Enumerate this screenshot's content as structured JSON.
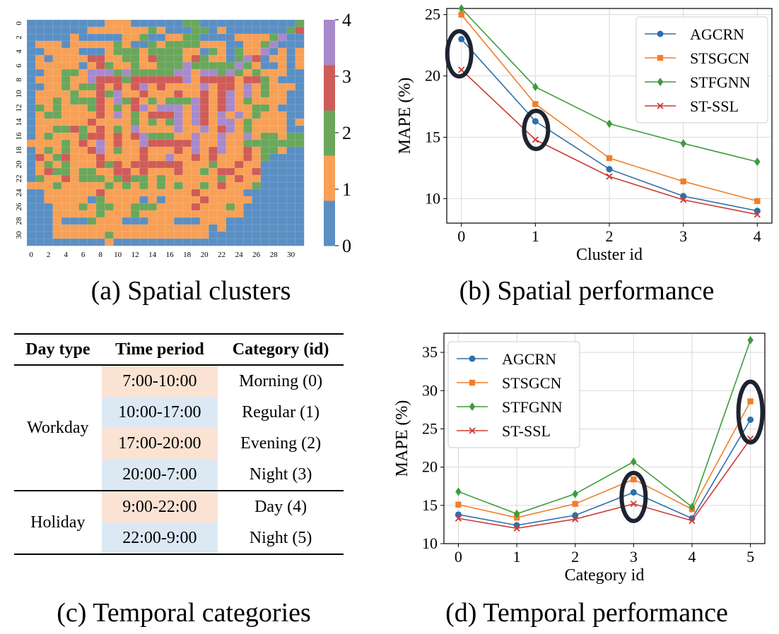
{
  "colors": {
    "cluster": [
      "#5b8fc4",
      "#f7a056",
      "#6aa75c",
      "#cf5c58",
      "#a88acb"
    ],
    "AGCRN": "#2f6fa8",
    "STSGCN": "#f07f2a",
    "STFGNN": "#3d9b3a",
    "ST-SSL": "#cc3b35",
    "highlight": "#1d2330",
    "warm_cell": "#fbe3d4",
    "cool_cell": "#dce9f5"
  },
  "captions": {
    "a": "(a) Spatial clusters",
    "b": "(b) Spatial performance",
    "c": "(c) Temporal categories",
    "d": "(d) Temporal performance"
  },
  "table": {
    "headers": [
      "Day type",
      "Time period",
      "Category (id)"
    ],
    "workday_label": "Workday",
    "holiday_label": "Holiday",
    "rows": [
      {
        "period": "7:00-10:00",
        "category": "Morning (0)"
      },
      {
        "period": "10:00-17:00",
        "category": "Regular (1)"
      },
      {
        "period": "17:00-20:00",
        "category": "Evening (2)"
      },
      {
        "period": "20:00-7:00",
        "category": "Night (3)"
      },
      {
        "period": "9:00-22:00",
        "category": "Day (4)"
      },
      {
        "period": "22:00-9:00",
        "category": "Night (5)"
      }
    ]
  },
  "chart_data": [
    {
      "type": "heatmap",
      "rows": 32,
      "cols": 32,
      "x_ticks": [
        "0",
        "2",
        "4",
        "6",
        "8",
        "10",
        "12",
        "14",
        "16",
        "18",
        "20",
        "22",
        "24",
        "26",
        "28",
        "30"
      ],
      "y_ticks": [
        "0",
        "2",
        "4",
        "6",
        "8",
        "10",
        "12",
        "14",
        "16",
        "18",
        "20",
        "22",
        "24",
        "26",
        "28",
        "30"
      ],
      "colorbar": {
        "min": 0,
        "max": 4,
        "ticks": [
          "0",
          "1",
          "2",
          "3",
          "4"
        ]
      },
      "values": [
        "00000000011100000022000000000002",
        "00000001111111210002201000000023",
        "00000100000112001122000011112400",
        "01110111112100212222111001124000",
        "00111100012221222211021021140101",
        "01011113311221322213211024301101",
        "01111101321121122242222242100101",
        "00112214442422222441442421211100",
        "01112114333233333341333313321000",
        "00112122313134131111413314121110",
        "01111211324113111311313414121100",
        "01121222314231212224313412111100",
        "02121112312134144414313411221000",
        "01221111314121333414314141211100",
        "01111113111121212414314412111101",
        "01122321312141111411413412111100",
        "01211123313134222114114114122122",
        "11112131413114333334114112222222",
        "01212113412113111314134113122100",
        "03123111311113114113131113120000",
        "01212111323133333311121131100000",
        "01322122113313111311213311300000",
        "02113122212322121111112131100000",
        "11121111121212121211213111200000",
        "00111111311111111113111110000000",
        "00111110211110101111311111000000",
        "00011121221122211113111210000000",
        "00011111211121111111111110000000",
        "00010002111000111000111000000000",
        "00011111111111111111101000000000",
        "00011111121111111111100000000000",
        "00000000010000000000000000000000"
      ]
    },
    {
      "type": "line",
      "xlabel": "Cluster id",
      "ylabel": "MAPE (%)",
      "x": [
        0,
        1,
        2,
        3,
        4
      ],
      "x_ticks": [
        "0",
        "1",
        "2",
        "3",
        "4"
      ],
      "y_ticks": [
        "10",
        "15",
        "20",
        "25"
      ],
      "ylim": [
        8,
        25.5
      ],
      "grid": true,
      "legend": "top-right",
      "series": [
        {
          "name": "AGCRN",
          "marker": "circle",
          "values": [
            23.0,
            16.3,
            12.4,
            10.2,
            9.0
          ]
        },
        {
          "name": "STSGCN",
          "marker": "square",
          "values": [
            25.0,
            17.7,
            13.3,
            11.4,
            9.8
          ]
        },
        {
          "name": "STFGNN",
          "marker": "diamond",
          "values": [
            25.5,
            19.1,
            16.1,
            14.5,
            13.0
          ]
        },
        {
          "name": "ST-SSL",
          "marker": "x",
          "values": [
            20.5,
            14.8,
            11.8,
            9.9,
            8.7
          ]
        }
      ],
      "highlights": [
        0,
        1
      ]
    },
    {
      "type": "line",
      "xlabel": "Category id",
      "ylabel": "MAPE (%)",
      "x": [
        0,
        1,
        2,
        3,
        4,
        5
      ],
      "x_ticks": [
        "0",
        "1",
        "2",
        "3",
        "4",
        "5"
      ],
      "y_ticks": [
        "10",
        "15",
        "20",
        "25",
        "30",
        "35"
      ],
      "ylim": [
        10,
        37.5
      ],
      "grid": true,
      "legend": "top-left",
      "series": [
        {
          "name": "AGCRN",
          "marker": "circle",
          "values": [
            13.8,
            12.4,
            13.7,
            16.7,
            13.3,
            26.2
          ]
        },
        {
          "name": "STSGCN",
          "marker": "square",
          "values": [
            15.1,
            13.4,
            15.2,
            18.4,
            14.5,
            28.6
          ]
        },
        {
          "name": "STFGNN",
          "marker": "diamond",
          "values": [
            16.8,
            13.9,
            16.5,
            20.7,
            14.8,
            36.6
          ]
        },
        {
          "name": "ST-SSL",
          "marker": "x",
          "values": [
            13.3,
            12.0,
            13.2,
            15.2,
            13.0,
            23.7
          ]
        }
      ],
      "highlights": [
        3,
        5
      ]
    }
  ]
}
